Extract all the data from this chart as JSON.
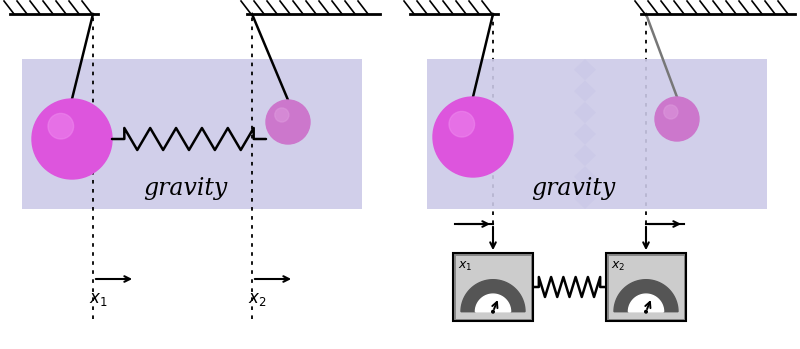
{
  "fig_width": 8.0,
  "fig_height": 3.49,
  "dpi": 100,
  "bg_color": "#ffffff",
  "lavender": "#cccae8",
  "ball_large_color": "#dd55dd",
  "ball_large_highlight": "#ee88ee",
  "ball_small_color": "#cc77cc",
  "ball_small_highlight": "#dd99dd",
  "gravity_fontsize": 17,
  "gravity_color": "#000000",
  "gauge_outer": "#888888",
  "gauge_inner_light": "#cccccc",
  "gauge_arc_dark": "#555555",
  "gauge_white": "#ffffff",
  "spring_lw": 1.8,
  "ceiling_lw": 2.0,
  "hatch_lw": 1.2,
  "dotted_lw": 1.3,
  "arrow_lw": 1.5,
  "pendulum_lw": 1.8
}
